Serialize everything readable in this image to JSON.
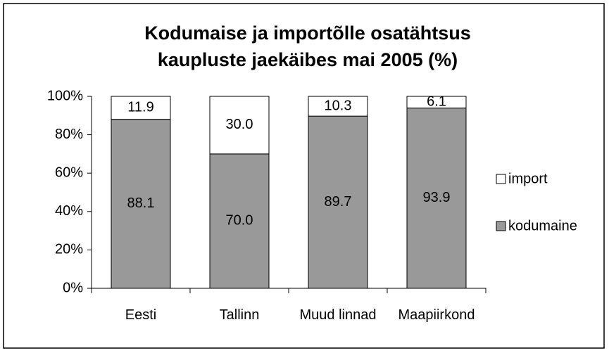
{
  "chart_data": {
    "type": "stacked_bar",
    "title": "Kodumaise ja importõlle osatähtsus kaupluste jaekäibes mai 2005 (%)",
    "categories": [
      "Eesti",
      "Tallinn",
      "Muud linnad",
      "Maapiirkond"
    ],
    "series": [
      {
        "name": "kodumaine",
        "color": "#999999",
        "values": [
          88.1,
          70,
          89.7,
          93.9
        ],
        "value_labels": [
          "88.1",
          "70.0",
          "89.7",
          "93.9"
        ]
      },
      {
        "name": "import",
        "color": "#ffffff",
        "values": [
          11.9,
          30,
          10.3,
          6.1
        ],
        "value_labels": [
          "11.9",
          "30.0",
          "10.3",
          "6.1"
        ]
      }
    ],
    "ylim": [
      0,
      100
    ],
    "yticks": [
      {
        "value": 0,
        "label": "0%"
      },
      {
        "value": 20,
        "label": "20%"
      },
      {
        "value": 40,
        "label": "40%"
      },
      {
        "value": 60,
        "label": "60%"
      },
      {
        "value": 80,
        "label": "80%"
      },
      {
        "value": 100,
        "label": "100%"
      }
    ],
    "legend": "right"
  }
}
